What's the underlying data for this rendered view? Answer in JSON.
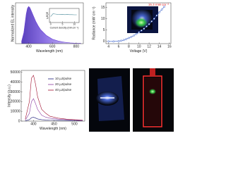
{
  "chart_data": [
    {
      "type": "area",
      "x_label": "Wavelength (nm)",
      "y_label": "Normalized EL intensity",
      "color": "#6a3fd8",
      "x": [
        340,
        360,
        380,
        390,
        400,
        410,
        420,
        440,
        460,
        480,
        500,
        550,
        600,
        650,
        700,
        750,
        800,
        840
      ],
      "values": [
        0.05,
        0.3,
        0.8,
        0.95,
        1.0,
        0.97,
        0.9,
        0.75,
        0.6,
        0.48,
        0.38,
        0.22,
        0.12,
        0.07,
        0.04,
        0.02,
        0.01,
        0.01
      ],
      "xlim": [
        290,
        860
      ],
      "ylim": [
        0,
        1.1
      ],
      "xticks": [
        400,
        600,
        800
      ]
    },
    {
      "type": "line",
      "x_label": "Current density (mA cm⁻²)",
      "y_label": "η-EQE",
      "color": "#4a8a9a",
      "x": [
        0,
        1,
        2,
        3,
        4,
        5,
        6,
        7,
        8,
        9,
        10,
        11
      ],
      "values": [
        0.42,
        0.62,
        0.6,
        0.58,
        0.57,
        0.58,
        0.56,
        0.57,
        0.56,
        0.56,
        0.55,
        0.55
      ],
      "xlim": [
        -0.5,
        12
      ],
      "ylim": [
        0,
        1
      ],
      "xticks": [
        0,
        5,
        10
      ]
    },
    {
      "type": "line",
      "markers": true,
      "x_label": "Voltage (V)",
      "y_label": "Radiance (mW cm⁻²)",
      "color": "#2f58c8",
      "annotation": "15.3 mW cm⁻²",
      "annotation_color": "#e02020",
      "x": [
        4,
        5,
        6,
        6.5,
        7,
        7.5,
        8,
        8.5,
        9,
        9.5,
        10,
        10.5,
        11,
        11.5,
        12,
        12.5,
        13,
        13.5,
        14,
        14.5,
        15
      ],
      "values": [
        0,
        0,
        0.1,
        0.3,
        0.6,
        1,
        1.5,
        2,
        2.6,
        3.3,
        4,
        4.8,
        5.6,
        6.6,
        7.6,
        8.8,
        10,
        11.4,
        12.8,
        14,
        15.3
      ],
      "xlim": [
        3.5,
        16.3
      ],
      "ylim": [
        -1,
        17
      ],
      "xticks": [
        4,
        6,
        8,
        10,
        12,
        14,
        16
      ],
      "yticks": [
        0,
        5,
        10,
        15
      ]
    },
    {
      "type": "line",
      "x_label": "Wavelength (nm)",
      "y_label": "Intensity (a.u.)",
      "x": [
        380,
        390,
        395,
        400,
        405,
        410,
        420,
        430,
        440,
        450,
        460,
        480,
        500,
        520
      ],
      "series": [
        {
          "name": "10 μJ/pulse",
          "color": "#1c1c7a",
          "values": [
            300,
            1500,
            3500,
            4000,
            3200,
            2200,
            1500,
            1200,
            1000,
            900,
            800,
            700,
            600,
            500
          ]
        },
        {
          "name": "20 μJ/pulse",
          "color": "#8a3aa0",
          "values": [
            1000,
            8000,
            20000,
            23000,
            18000,
            12000,
            6000,
            4000,
            3000,
            2500,
            2000,
            1500,
            1000,
            800
          ]
        },
        {
          "name": "40 μJ/pulse",
          "color": "#a01030",
          "values": [
            2000,
            20000,
            44000,
            47000,
            38000,
            25000,
            12000,
            8000,
            5000,
            4000,
            3000,
            2000,
            1500,
            1000
          ]
        }
      ],
      "xlim": [
        370,
        525
      ],
      "ylim": [
        0,
        52000
      ],
      "xticks": [
        400,
        450,
        500
      ],
      "yticks": [
        0,
        10000,
        20000,
        30000,
        40000,
        50000
      ]
    }
  ]
}
